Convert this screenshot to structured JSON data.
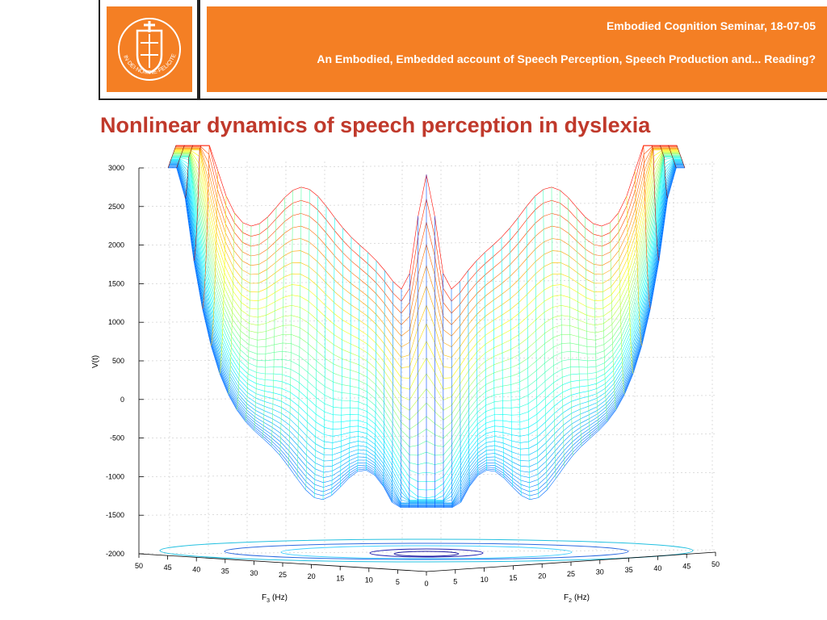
{
  "header": {
    "line1": "Embodied Cognition Seminar, 18-07-05",
    "line2": "An Embodied, Embedded account of Speech Perception, Speech Production and... Reading?",
    "logo_text": "IN·DEI·NOMINE·FELICITER"
  },
  "slide": {
    "title": "Nonlinear dynamics of speech perception in dyslexia"
  },
  "colors": {
    "header_orange": "#f47f24",
    "title_red": "#c0392b"
  },
  "chart_data": {
    "type": "surface",
    "zlabel": "V(t)",
    "z_ticks": [
      3000,
      2500,
      2000,
      1500,
      1000,
      500,
      0,
      -500,
      -1000,
      -1500,
      -2000
    ],
    "zlim": [
      -2000,
      3000
    ],
    "x_axis": {
      "label": "F",
      "subscript": "3",
      "unit": "(Hz)",
      "ticks": [
        50,
        45,
        40,
        35,
        30,
        25,
        20,
        15,
        10,
        5,
        0
      ]
    },
    "y_axis": {
      "label": "F",
      "subscript": "2",
      "unit": "(Hz)",
      "ticks": [
        5,
        10,
        15,
        20,
        25,
        30,
        35,
        40,
        45,
        50
      ]
    },
    "grid": true,
    "colormap": "jet",
    "has_contour_projection": true
  }
}
